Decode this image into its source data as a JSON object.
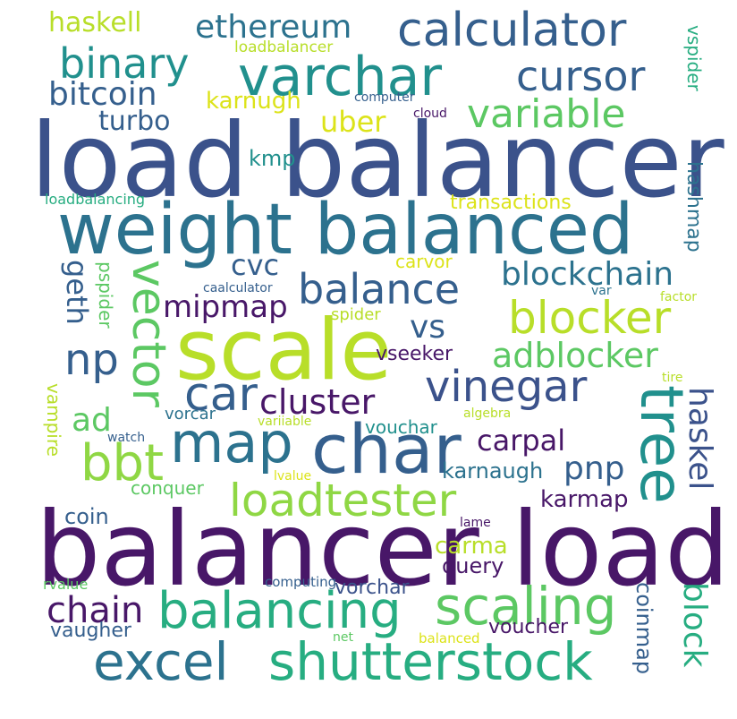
{
  "palette": {
    "dark_purple": "#481768",
    "indigo": "#3b528b",
    "slate_blue": "#355f8d",
    "blue": "#2c728e",
    "teal": "#21908d",
    "teal_green": "#27ad81",
    "green": "#5cc863",
    "lime": "#8fd744",
    "yellow_green": "#b8de29",
    "yellow": "#dce319"
  },
  "words": {
    "load_balancer": "load balancer",
    "balancer_load": "balancer load",
    "weight_balanced": "weight balanced",
    "scale": "scale",
    "char": "char",
    "map": "map",
    "tree": "tree",
    "varchar": "varchar",
    "calculator": "calculator",
    "binary": "binary",
    "cursor": "cursor",
    "variable": "variable",
    "ethereum": "ethereum",
    "haskell": "haskell",
    "bitcoin": "bitcoin",
    "turbo": "turbo",
    "karnugh": "karnugh",
    "uber": "uber",
    "loadbalancer": "loadbalancer",
    "computer": "computer",
    "cloud": "cloud",
    "vspider": "vspider",
    "kmp": "kmp",
    "loadbalancing": "loadbalancing",
    "transactions": "transactions",
    "hashmap": "hashmap",
    "cvc": "cvc",
    "carvor": "carvor",
    "geth": "geth",
    "pspider": "pspider",
    "caalculator": "caalculator",
    "var": "var",
    "factor": "factor",
    "balance": "balance",
    "blockchain": "blockchain",
    "mipmap": "mipmap",
    "blocker": "blocker",
    "np": "np",
    "vector": "vector",
    "spider": "spider",
    "vs": "vs",
    "adblocker": "adblocker",
    "vseeker": "vseeker",
    "tire": "tire",
    "car": "car",
    "cluster": "cluster",
    "vinegar": "vinegar",
    "haskel": "haskel",
    "vampire": "vampire",
    "ad": "ad",
    "vorcar": "vorcar",
    "variiable": "variiable",
    "algebra": "algebra",
    "watch": "watch",
    "vouchar": "vouchar",
    "carpal": "carpal",
    "bbt": "bbt",
    "karnaugh": "karnaugh",
    "pnp": "pnp",
    "loadtester": "loadtester",
    "conquer": "conquer",
    "lvalue": "lvalue",
    "karmap": "karmap",
    "coin": "coin",
    "lame": "lame",
    "carma": "carma",
    "query": "query",
    "rvalue": "rvalue",
    "computing": "computing",
    "vorchar": "vorchar",
    "coinmap": "coinmap",
    "chain": "chain",
    "balancing": "balancing",
    "scaling": "scaling",
    "block": "block",
    "vaugher": "vaugher",
    "voucher": "voucher",
    "net": "net",
    "balanced": "balanced",
    "excel": "excel",
    "shutterstock": "shutterstock"
  }
}
